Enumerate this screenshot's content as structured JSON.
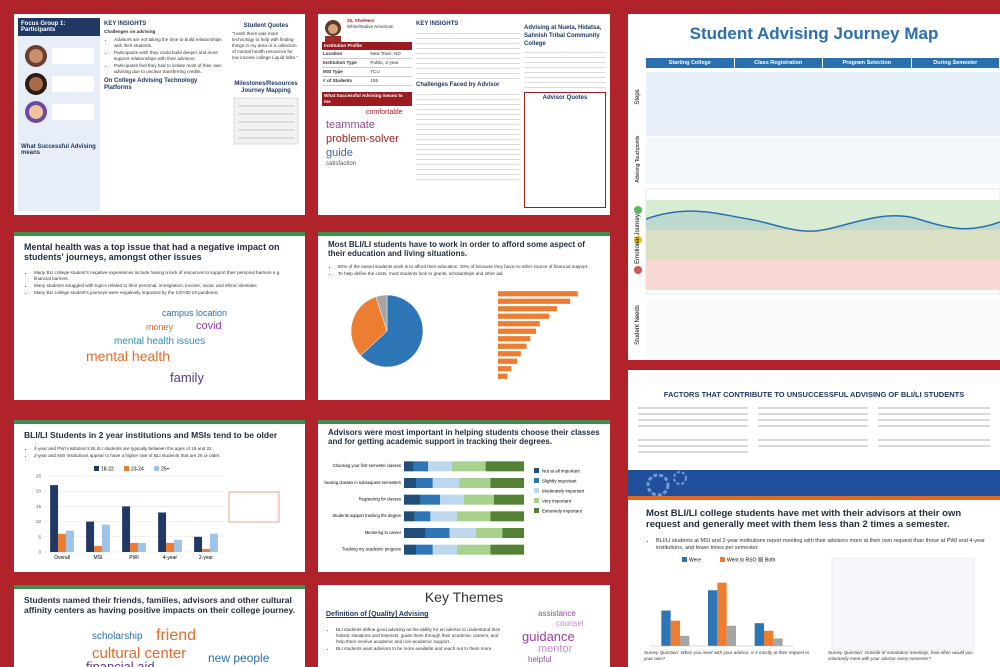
{
  "focus_group": {
    "title": "Focus Group 1: Participants",
    "heading": "KEY INSIGHTS",
    "subheading": "Challenges on advising",
    "bullets": [
      "Advisors are not taking the time to build relationships with their students.",
      "Participants wish they could build deeper and more support relationships with their advisors.",
      "Participants feel they had to initiate most of their own advising due to unclear transferring credits."
    ],
    "tech_heading": "On College Advising Technology Platforms",
    "success_heading": "What Successful Advising means",
    "quotes_heading": "Student Quotes",
    "quote": "\"I wish there was more technology to help with finding things in my area or a collection of mental health resources for low income college Liquid folks.\"",
    "mapping_heading": "Milestones/Resources Journey Mapping"
  },
  "profile": {
    "name": "25, She/Hers",
    "subtitle": "White/Native American",
    "institution_heading": "Institution Profile",
    "rows": [
      [
        "Location",
        "New Town, ND"
      ],
      [
        "Institution Type",
        "Public, 2-year"
      ],
      [
        "MSI Type",
        "TCU"
      ],
      [
        "# of Students",
        "155"
      ]
    ],
    "success_heading": "What Successful Advising means to me",
    "insights_heading": "KEY INSIGHTS",
    "challenges_heading": "Challenges Faced by Advisor",
    "college_heading": "Advising at Nueta, Hidatsa, Sahnish Tribal Community College",
    "advisor_heading": "Advisor Quotes",
    "words": [
      "comfortable",
      "teammate",
      "problem-solver",
      "guide",
      "satisfaction"
    ]
  },
  "journey": {
    "title": "Student Advising  Journey Map",
    "stages": [
      "Starting College",
      "Class Registration",
      "Program Selection",
      "During Semester"
    ],
    "rows": [
      "Steps",
      "Advising Touchpoints",
      "Emotional Journey",
      "Student Needs"
    ]
  },
  "mental": {
    "title": "Mental health was a top issue that had a negative impact on students' journeys, amongst other issues",
    "bullets": [
      "Many BLI college student's negative experiences include having a lack of resources to support their personal barriers e.g. financial barriers",
      "Many students struggled with topics related to their personal, immigration, income, racial, and ethnic identities",
      "Many BLI college student's journeys were negatively impacted by the COVID-19 pandemic"
    ],
    "words": [
      "campus location",
      "money",
      "covid",
      "mental health issues",
      "mental health",
      "family"
    ]
  },
  "work": {
    "title": "Most BLI/LI students have to work in order to afford some aspect of their education and living situations.",
    "bullets": [
      "80% of the eased students work is to afford their education. 20% of because they have no other source of financial support.",
      "To help define the costs, most students look to grants, scholarships and other aid."
    ],
    "pie": {
      "type": "pie",
      "values": [
        63,
        32,
        5
      ],
      "colors": [
        "#2e75b6",
        "#ed7d31",
        "#a5a5a5"
      ]
    },
    "bars": {
      "type": "bar",
      "values": [
        42,
        38,
        31,
        27,
        22,
        20,
        17,
        15,
        12,
        10,
        7,
        5
      ],
      "color": "#ed7d31",
      "xlim": [
        0,
        50
      ]
    }
  },
  "age": {
    "type": "bar",
    "title": "BLI/LI Students in 2 year institutions and MSIs tend to be older",
    "bullets": [
      "4-year and PWI institution's BLI/LI students are typically between the ages of 18 and 22.",
      "2-year and MSI institutions appear to have a higher rate of BLI students that are 25 or older."
    ],
    "categories": [
      "Overall",
      "MSI",
      "PWI",
      "4-year",
      "2-year"
    ],
    "series": [
      {
        "name": "18-22",
        "color": "#203864",
        "values": [
          22,
          10,
          15,
          13,
          5
        ]
      },
      {
        "name": "23-24",
        "color": "#ed7d31",
        "values": [
          6,
          2,
          3,
          3,
          1
        ]
      },
      {
        "name": "25+",
        "color": "#9dc3e6",
        "values": [
          7,
          9,
          3,
          4,
          6
        ]
      }
    ],
    "ylim": [
      0,
      25
    ],
    "yticks": [
      0,
      5,
      10,
      15,
      20,
      25
    ]
  },
  "advisors": {
    "type": "stacked_bar",
    "title": "Advisors were most important in helping students choose their classes and for getting academic support in tracking their degrees.",
    "categories": [
      "Choosing your first semester classes",
      "Choosing classes in subsequent semesters",
      "Registering for classes",
      "Students support tracking the degree",
      "Mentoring to career",
      "Tracking my academic progress"
    ],
    "series": [
      {
        "name": "Not at all important",
        "color": "#1f4e79",
        "values": [
          8,
          10,
          14,
          9,
          18,
          10
        ]
      },
      {
        "name": "Slightly important",
        "color": "#2e75b6",
        "values": [
          12,
          14,
          16,
          13,
          20,
          14
        ]
      },
      {
        "name": "Moderately important",
        "color": "#bdd7ee",
        "values": [
          20,
          22,
          20,
          22,
          22,
          20
        ]
      },
      {
        "name": "Very important",
        "color": "#a9d18e",
        "values": [
          28,
          26,
          25,
          28,
          22,
          28
        ]
      },
      {
        "name": "Extremely important",
        "color": "#548235",
        "values": [
          32,
          28,
          25,
          28,
          18,
          28
        ]
      }
    ],
    "xlim": [
      0,
      100
    ]
  },
  "factors": {
    "title": "FACTORS THAT CONTRIBUTE TO UNSUCCESSFUL ADVISING OF BLI/LI STUDENTS"
  },
  "meet": {
    "type": "bar",
    "title": "Most BLI/LI college students have met with their advisors at their own request and generally meet with them less than 2 times a semester.",
    "bullets": [
      "BLI/LI students at MSI and 2-year institutions report meeting with their advisors more at their own request than those at PWI and 4-year institutions, and fewer times per semester."
    ],
    "series": [
      {
        "name": "Were",
        "color": "#2e75b6",
        "values": [
          14,
          22,
          9
        ]
      },
      {
        "name": "Went to RSO",
        "color": "#ed7d31",
        "values": [
          10,
          25,
          6
        ]
      },
      {
        "name": "Both",
        "color": "#a5a5a5",
        "values": [
          4,
          8,
          3
        ]
      }
    ],
    "ylim": [
      0,
      30
    ],
    "question_1": "Survey Question: When you meet with your advisor, is it mostly at their request or your own?",
    "question_2": "Survey Question: Outside of mandatory meetings, how often would you voluntarily meet with your advisor every semester?"
  },
  "friends": {
    "title": "Students named their friends, families, advisors and other cultural affinity centers as having positive impacts on their college journey.",
    "words": [
      "scholarship",
      "friend",
      "cultural center",
      "financial aid",
      "new people"
    ]
  },
  "themes": {
    "title": "Key Themes",
    "subtitle": "Definition of [Quality] Advising",
    "bullets": [
      "BLI students define good advising as the ability for an advisor to understand their holistic situations and interests, guide them through their academic careers, and help them receive academic and non-academic support.",
      "BLI students want advisors to be more available and reach out to them more."
    ],
    "words": [
      "assistance",
      "counsel",
      "guidance",
      "mentor",
      "helpful"
    ]
  }
}
